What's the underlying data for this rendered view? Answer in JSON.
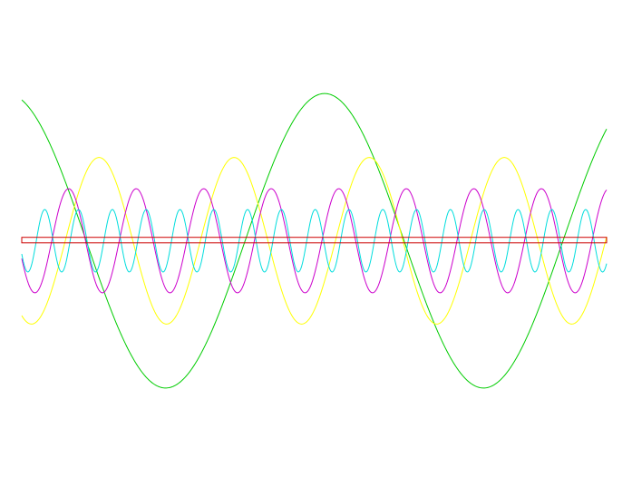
{
  "chart_data": {
    "type": "line",
    "title": "",
    "xlabel": "",
    "ylabel": "",
    "grid": false,
    "legend": "none",
    "xlim": [
      0,
      1
    ],
    "ylim": [
      -1,
      1
    ],
    "series": [
      {
        "color": "#00cc00",
        "kind": "sine",
        "amplitude": 0.99,
        "cycles": 1.84,
        "phase_deg": 107
      },
      {
        "color": "#ffff00",
        "kind": "sine",
        "amplitude": 0.56,
        "cycles": 4.33,
        "phase_deg": 244
      },
      {
        "color": "#cc00cc",
        "kind": "sine",
        "amplitude": 0.35,
        "cycles": 8.66,
        "phase_deg": 200
      },
      {
        "color": "#00dddd",
        "kind": "sine",
        "amplitude": 0.21,
        "cycles": 17.3,
        "phase_deg": 205
      },
      {
        "color": "#cc0000",
        "kind": "band",
        "upper": 0.023,
        "lower": -0.014
      }
    ]
  }
}
